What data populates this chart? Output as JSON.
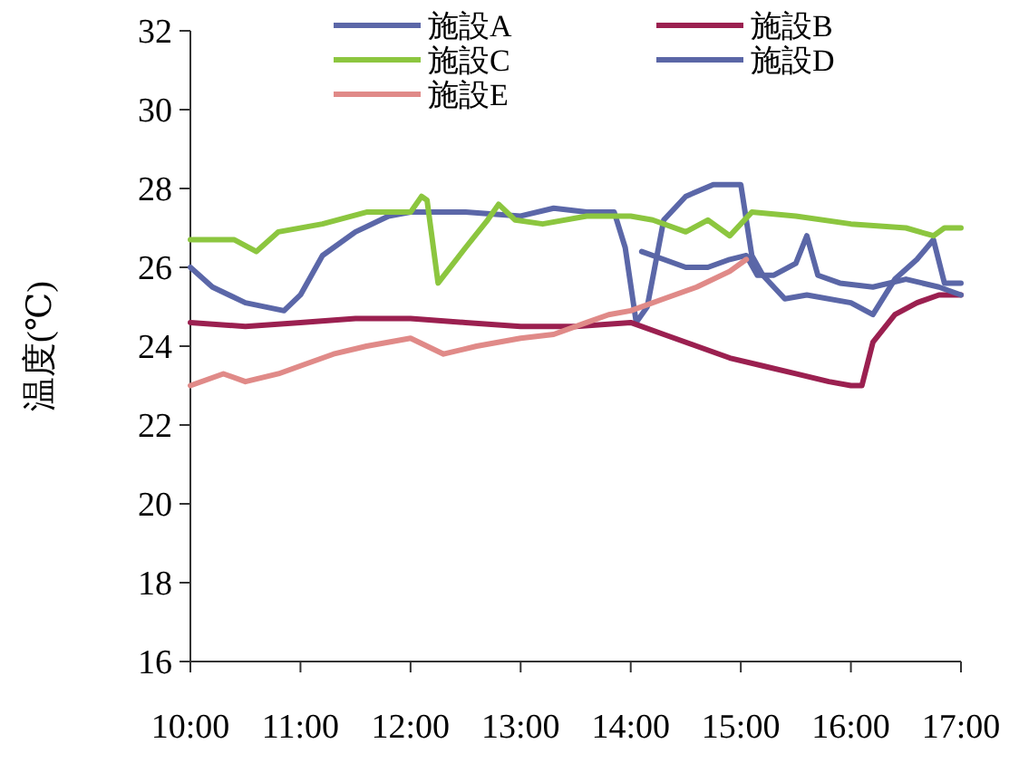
{
  "chart_data": {
    "type": "line",
    "ylabel": "温度(℃)",
    "xlim": [
      10,
      17
    ],
    "ylim": [
      16,
      32
    ],
    "xticks": [
      {
        "value": 10,
        "label": "10:00"
      },
      {
        "value": 11,
        "label": "11:00"
      },
      {
        "value": 12,
        "label": "12:00"
      },
      {
        "value": 13,
        "label": "13:00"
      },
      {
        "value": 14,
        "label": "14:00"
      },
      {
        "value": 15,
        "label": "15:00"
      },
      {
        "value": 16,
        "label": "16:00"
      },
      {
        "value": 17,
        "label": "17:00"
      }
    ],
    "yticks": [
      16,
      18,
      20,
      22,
      24,
      26,
      28,
      30,
      32
    ],
    "grid": false,
    "legend": "top right",
    "marker": "none",
    "line_style": "solid",
    "series": [
      {
        "name": "施設A",
        "color": "#5b67a8",
        "x": [
          10,
          10.2,
          10.5,
          10.85,
          11,
          11.2,
          11.5,
          11.8,
          12,
          12.5,
          13,
          13.3,
          13.6,
          13.85,
          13.95,
          14.05,
          14.15,
          14.3,
          14.5,
          14.75,
          15,
          15.1,
          15.2,
          15.4,
          15.6,
          16,
          16.2,
          16.4,
          16.6,
          16.75,
          16.85,
          17
        ],
        "values": [
          26,
          25.5,
          25.1,
          24.9,
          25.3,
          26.3,
          26.9,
          27.3,
          27.4,
          27.4,
          27.3,
          27.5,
          27.4,
          27.4,
          26.5,
          24.6,
          25,
          27.2,
          27.8,
          28.1,
          28.1,
          26.3,
          25.8,
          25.2,
          25.3,
          25.1,
          24.8,
          25.7,
          26.2,
          26.7,
          25.6,
          25.6
        ]
      },
      {
        "name": "施設B",
        "color": "#9b2050",
        "x": [
          10,
          10.5,
          11,
          11.5,
          12,
          12.5,
          13,
          13.5,
          14,
          14.3,
          14.6,
          14.9,
          15.2,
          15.5,
          15.8,
          16,
          16.1,
          16.2,
          16.4,
          16.6,
          16.8,
          17
        ],
        "values": [
          24.6,
          24.5,
          24.6,
          24.7,
          24.7,
          24.6,
          24.5,
          24.5,
          24.6,
          24.3,
          24,
          23.7,
          23.5,
          23.3,
          23.1,
          23,
          23,
          24.1,
          24.8,
          25.1,
          25.3,
          25.3
        ]
      },
      {
        "name": "施設C",
        "color": "#8cc63f",
        "x": [
          10,
          10.4,
          10.6,
          10.8,
          11.2,
          11.6,
          12,
          12.1,
          12.15,
          12.25,
          12.5,
          12.7,
          12.8,
          12.95,
          13.2,
          13.6,
          14,
          14.2,
          14.5,
          14.7,
          14.9,
          15.1,
          15.5,
          16,
          16.5,
          16.75,
          16.85,
          17
        ],
        "values": [
          26.7,
          26.7,
          26.4,
          26.9,
          27.1,
          27.4,
          27.4,
          27.8,
          27.7,
          25.6,
          26.5,
          27.2,
          27.6,
          27.2,
          27.1,
          27.3,
          27.3,
          27.2,
          26.9,
          27.2,
          26.8,
          27.4,
          27.3,
          27.1,
          27,
          26.8,
          27,
          27
        ]
      },
      {
        "name": "施設D",
        "color": "#5a66a6",
        "x": [
          14.1,
          14.3,
          14.5,
          14.7,
          14.9,
          15.05,
          15.15,
          15.3,
          15.5,
          15.6,
          15.7,
          15.9,
          16.2,
          16.5,
          16.8,
          17
        ],
        "values": [
          26.4,
          26.2,
          26,
          26,
          26.2,
          26.3,
          25.8,
          25.8,
          26.1,
          26.8,
          25.8,
          25.6,
          25.5,
          25.7,
          25.5,
          25.3
        ]
      },
      {
        "name": "施設E",
        "color": "#e08a88",
        "x": [
          10,
          10.3,
          10.5,
          10.8,
          11,
          11.3,
          11.6,
          12,
          12.3,
          12.6,
          13,
          13.3,
          13.6,
          13.8,
          14,
          14.3,
          14.6,
          14.9,
          15.05
        ],
        "values": [
          23,
          23.3,
          23.1,
          23.3,
          23.5,
          23.8,
          24,
          24.2,
          23.8,
          24,
          24.2,
          24.3,
          24.6,
          24.8,
          24.9,
          25.2,
          25.5,
          25.9,
          26.2
        ]
      }
    ]
  }
}
